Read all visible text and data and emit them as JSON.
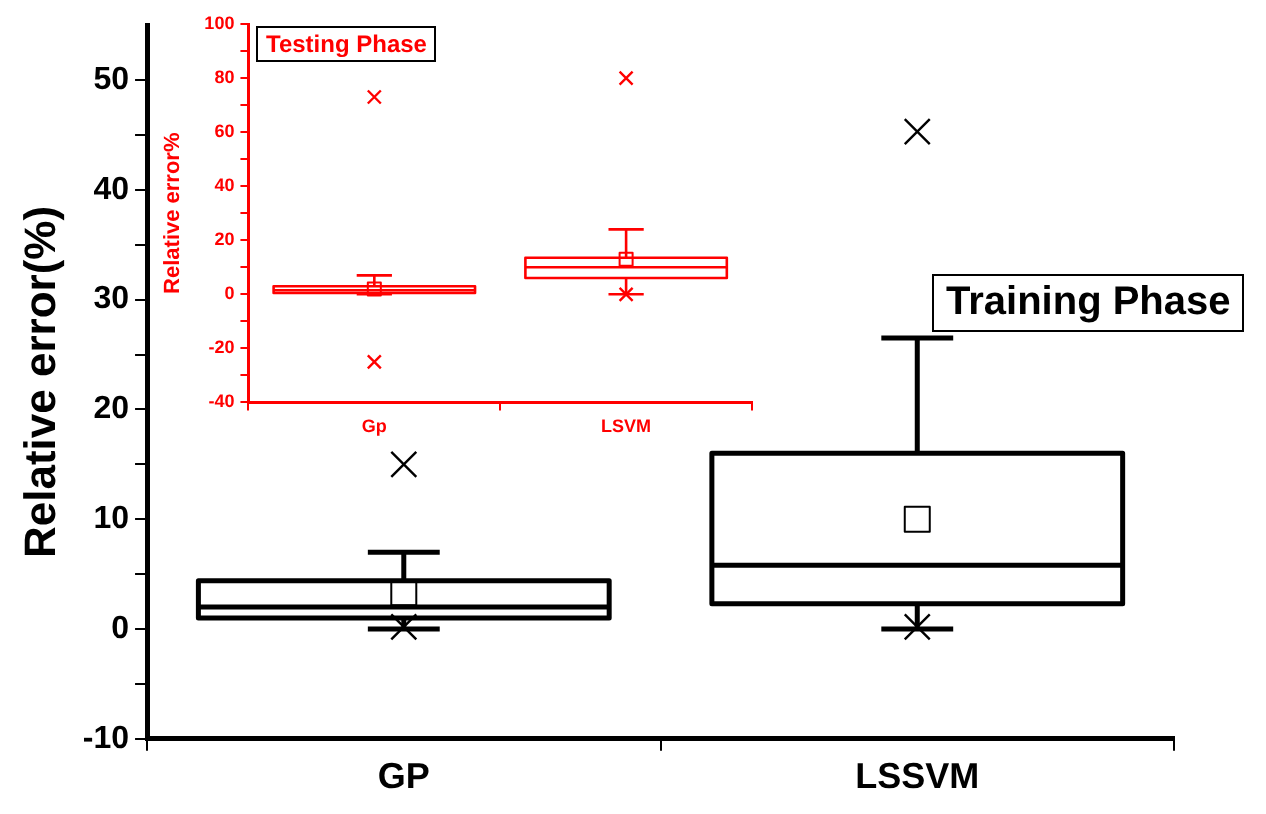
{
  "chart_data": [
    {
      "type": "box",
      "title": "Training Phase",
      "ylabel": "Relative error(%)",
      "categories": [
        "GP",
        "LSSVM"
      ],
      "ylim": [
        -10,
        55
      ],
      "yticks": [
        -10,
        {
          "value": -5,
          "label": null
        },
        0,
        {
          "value": 5,
          "label": null
        },
        10,
        {
          "value": 15,
          "label": null
        },
        20,
        {
          "value": 25,
          "label": null
        },
        30,
        {
          "value": 35,
          "label": null
        },
        40,
        {
          "value": 45,
          "label": null
        },
        50
      ],
      "grid": false,
      "series": [
        {
          "color": "#000000",
          "boxes": [
            {
              "low": 0,
              "q1": 1,
              "median": 2,
              "q3": 4.4,
              "high": 7,
              "mean": 3.3,
              "outliers": [
                15,
                0.2
              ]
            },
            {
              "low": 0,
              "q1": 2.3,
              "median": 5.8,
              "q3": 16,
              "high": 26.5,
              "mean": 10,
              "outliers": [
                45.3,
                0.2
              ]
            }
          ]
        }
      ]
    },
    {
      "type": "box",
      "title": "Testing Phase",
      "ylabel": "Relative error%",
      "categories": [
        "Gp",
        "LSVM"
      ],
      "ylim": [
        -40,
        100
      ],
      "yticks": [
        -40,
        {
          "value": -30,
          "label": null
        },
        -20,
        {
          "value": -10,
          "label": null
        },
        0,
        {
          "value": 10,
          "label": null
        },
        20,
        {
          "value": 30,
          "label": null
        },
        40,
        {
          "value": 50,
          "label": null
        },
        60,
        {
          "value": 70,
          "label": null
        },
        80,
        {
          "value": 90,
          "label": null
        },
        100
      ],
      "grid": false,
      "series": [
        {
          "color": "#ff0000",
          "boxes": [
            {
              "low": 0,
              "q1": 0.5,
              "median": 1.5,
              "q3": 3,
              "high": 7,
              "mean": 2,
              "outliers": [
                73,
                -25
              ]
            },
            {
              "low": 0,
              "q1": 6,
              "median": 10,
              "q3": 13.5,
              "high": 24,
              "mean": 13,
              "outliers": [
                80,
                0
              ]
            }
          ]
        }
      ]
    }
  ]
}
